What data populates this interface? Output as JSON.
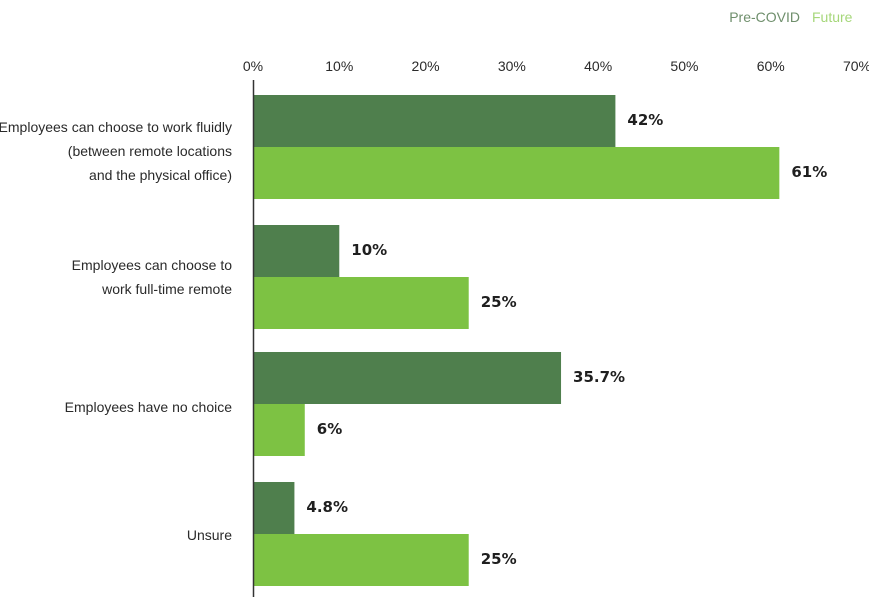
{
  "chart_data": {
    "type": "bar",
    "orientation": "horizontal",
    "categories": [
      [
        "Employees can choose to work fluidly",
        "(between remote locations",
        "and the physical office)"
      ],
      [
        "Employees can choose to",
        "work full-time remote"
      ],
      [
        "Employees have no choice"
      ],
      [
        "Unsure"
      ]
    ],
    "series": [
      {
        "name": "Pre-COVID",
        "color": "#4f7f4d",
        "values": [
          42,
          10,
          35.7,
          4.8
        ],
        "labels": [
          "42%",
          "10%",
          "35.7%",
          "4.8%"
        ]
      },
      {
        "name": "Future",
        "color": "#7dc243",
        "values": [
          61,
          25,
          6,
          25
        ],
        "labels": [
          "61%",
          "25%",
          "6%",
          "25%"
        ]
      }
    ],
    "xlim": [
      0,
      70
    ],
    "xticks": [
      0,
      10,
      20,
      30,
      40,
      50,
      60,
      70
    ],
    "xtick_labels": [
      "0%",
      "10%",
      "20%",
      "30%",
      "40%",
      "50%",
      "60%",
      "70%"
    ],
    "axis_position": "top",
    "legend": {
      "position": "top-right"
    },
    "grid": false,
    "title": "",
    "xlabel": "",
    "ylabel": ""
  }
}
